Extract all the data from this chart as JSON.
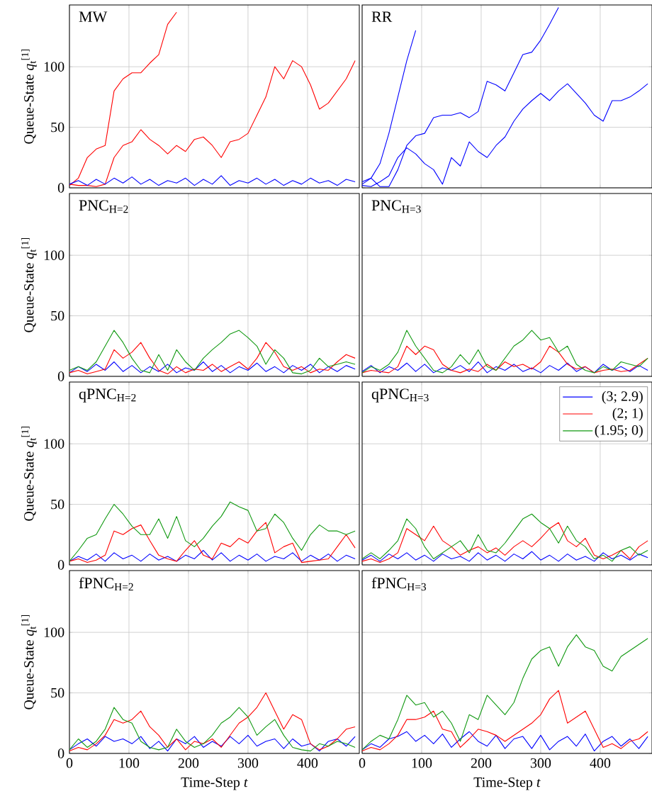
{
  "chart_data": [
    {
      "type": "line",
      "title": "MW",
      "ylabel": "Queue-State *q*$_{t}$$^{[1]}$",
      "xlim": [
        0,
        487
      ],
      "ylim": [
        0,
        151
      ],
      "xticks": [
        0,
        100,
        200,
        300,
        400
      ],
      "yticks": [
        0,
        50,
        100
      ],
      "grid": true,
      "tick_labels": "y",
      "x": [
        0,
        15,
        30,
        45,
        60,
        75,
        90,
        105,
        120,
        135,
        150,
        165,
        180,
        195,
        210,
        225,
        240,
        255,
        270,
        285,
        300,
        315,
        330,
        345,
        360,
        375,
        390,
        405,
        420,
        435,
        450,
        465,
        480
      ],
      "series": [
        {
          "color": "#ff0000",
          "values": [
            2,
            8,
            25,
            32,
            35,
            80,
            90,
            95,
            95,
            103,
            110,
            135,
            145,
            null,
            null,
            null,
            null,
            null,
            null,
            null,
            null,
            null,
            null,
            null,
            null,
            null,
            null,
            null,
            null,
            null,
            null,
            null,
            null
          ]
        },
        {
          "color": "#ff0000",
          "values": [
            3,
            2,
            2,
            1,
            3,
            25,
            35,
            38,
            48,
            40,
            35,
            28,
            35,
            30,
            40,
            42,
            35,
            25,
            38,
            40,
            45,
            60,
            75,
            100,
            90,
            105,
            100,
            85,
            65,
            70,
            80,
            90,
            105
          ]
        },
        {
          "color": "#0000ff",
          "values": [
            3,
            6,
            2,
            7,
            3,
            8,
            4,
            9,
            3,
            7,
            2,
            6,
            4,
            8,
            2,
            7,
            3,
            10,
            2,
            6,
            4,
            8,
            3,
            7,
            2,
            6,
            3,
            8,
            4,
            6,
            2,
            7,
            5
          ]
        }
      ]
    },
    {
      "type": "line",
      "title": "RR",
      "xlim": [
        0,
        487
      ],
      "ylim": [
        0,
        151
      ],
      "xticks": [
        0,
        100,
        200,
        300,
        400
      ],
      "yticks": [
        0,
        50,
        100
      ],
      "grid": true,
      "tick_labels": false,
      "x": [
        0,
        15,
        30,
        45,
        60,
        75,
        90,
        105,
        120,
        135,
        150,
        165,
        180,
        195,
        210,
        225,
        240,
        255,
        270,
        285,
        300,
        315,
        330,
        345,
        360,
        375,
        390,
        405,
        420,
        435,
        450,
        465,
        480
      ],
      "series": [
        {
          "color": "#0000ff",
          "values": [
            5,
            8,
            20,
            45,
            75,
            105,
            130,
            null,
            null,
            null,
            null,
            null,
            null,
            null,
            null,
            null,
            null,
            null,
            null,
            null,
            null,
            null,
            null,
            null,
            null,
            null,
            null,
            null,
            null,
            null,
            null,
            null,
            null
          ]
        },
        {
          "color": "#0000ff",
          "values": [
            3,
            8,
            1,
            1,
            15,
            35,
            43,
            45,
            58,
            60,
            60,
            62,
            58,
            63,
            88,
            85,
            80,
            95,
            110,
            112,
            122,
            135,
            149,
            null,
            null,
            null,
            null,
            null,
            null,
            null,
            null,
            null,
            null
          ]
        },
        {
          "color": "#0000ff",
          "values": [
            2,
            1,
            5,
            10,
            25,
            33,
            28,
            20,
            15,
            3,
            25,
            18,
            38,
            30,
            25,
            35,
            42,
            55,
            65,
            72,
            78,
            72,
            80,
            86,
            78,
            70,
            60,
            55,
            72,
            72,
            75,
            80,
            86
          ]
        }
      ]
    },
    {
      "type": "line",
      "title": "PNC$_{H=2}$",
      "ylabel": "Queue-State *q*$_{t}$$^{[1]}$",
      "xlim": [
        0,
        487
      ],
      "ylim": [
        0,
        151
      ],
      "xticks": [
        0,
        100,
        200,
        300,
        400
      ],
      "yticks": [
        0,
        50,
        100
      ],
      "grid": true,
      "tick_labels": "y",
      "x": [
        0,
        15,
        30,
        45,
        60,
        75,
        90,
        105,
        120,
        135,
        150,
        165,
        180,
        195,
        210,
        225,
        240,
        255,
        270,
        285,
        300,
        315,
        330,
        345,
        360,
        375,
        390,
        405,
        420,
        435,
        450,
        465,
        480
      ],
      "series": [
        {
          "color": "#0000ff",
          "values": [
            3,
            8,
            4,
            10,
            5,
            12,
            4,
            9,
            3,
            8,
            4,
            10,
            3,
            7,
            5,
            12,
            4,
            9,
            3,
            8,
            5,
            11,
            4,
            8,
            3,
            9,
            5,
            10,
            3,
            8,
            4,
            9,
            6
          ]
        },
        {
          "color": "#ff0000",
          "values": [
            3,
            5,
            2,
            4,
            6,
            22,
            15,
            20,
            28,
            15,
            5,
            2,
            8,
            3,
            6,
            5,
            10,
            4,
            8,
            12,
            6,
            15,
            28,
            20,
            8,
            5,
            8,
            3,
            6,
            5,
            12,
            18,
            15
          ]
        },
        {
          "color": "#119911",
          "values": [
            5,
            8,
            5,
            12,
            25,
            38,
            28,
            15,
            5,
            3,
            18,
            5,
            22,
            12,
            5,
            15,
            22,
            28,
            35,
            38,
            32,
            25,
            10,
            22,
            15,
            3,
            2,
            5,
            15,
            8,
            10,
            12,
            10
          ]
        }
      ]
    },
    {
      "type": "line",
      "title": "PNC$_{H=3}$",
      "xlim": [
        0,
        487
      ],
      "ylim": [
        0,
        151
      ],
      "xticks": [
        0,
        100,
        200,
        300,
        400
      ],
      "yticks": [
        0,
        50,
        100
      ],
      "grid": true,
      "tick_labels": false,
      "x": [
        0,
        15,
        30,
        45,
        60,
        75,
        90,
        105,
        120,
        135,
        150,
        165,
        180,
        195,
        210,
        225,
        240,
        255,
        270,
        285,
        300,
        315,
        330,
        345,
        360,
        375,
        390,
        405,
        420,
        435,
        450,
        465,
        480
      ],
      "series": [
        {
          "color": "#0000ff",
          "values": [
            4,
            9,
            3,
            8,
            5,
            11,
            4,
            10,
            3,
            7,
            5,
            9,
            4,
            12,
            3,
            8,
            5,
            10,
            4,
            7,
            3,
            9,
            5,
            11,
            4,
            8,
            3,
            10,
            5,
            8,
            4,
            9,
            5
          ]
        },
        {
          "color": "#ff0000",
          "values": [
            3,
            5,
            4,
            3,
            8,
            25,
            18,
            25,
            22,
            10,
            5,
            3,
            6,
            4,
            10,
            5,
            12,
            8,
            10,
            6,
            12,
            25,
            20,
            10,
            6,
            8,
            3,
            5,
            6,
            4,
            5,
            10,
            15
          ]
        },
        {
          "color": "#119911",
          "values": [
            3,
            8,
            5,
            10,
            20,
            38,
            25,
            15,
            5,
            3,
            8,
            18,
            10,
            22,
            8,
            5,
            15,
            25,
            30,
            38,
            30,
            32,
            20,
            25,
            10,
            5,
            3,
            8,
            5,
            12,
            10,
            8,
            15
          ]
        }
      ]
    },
    {
      "type": "line",
      "title": "qPNC$_{H=2}$",
      "ylabel": "Queue-State *q*$_{t}$$^{[1]}$",
      "xlim": [
        0,
        487
      ],
      "ylim": [
        0,
        151
      ],
      "xticks": [
        0,
        100,
        200,
        300,
        400
      ],
      "yticks": [
        0,
        50,
        100
      ],
      "grid": true,
      "tick_labels": "y",
      "x": [
        0,
        15,
        30,
        45,
        60,
        75,
        90,
        105,
        120,
        135,
        150,
        165,
        180,
        195,
        210,
        225,
        240,
        255,
        270,
        285,
        300,
        315,
        330,
        345,
        360,
        375,
        390,
        405,
        420,
        435,
        450,
        465,
        480
      ],
      "series": [
        {
          "color": "#0000ff",
          "values": [
            3,
            7,
            4,
            9,
            3,
            10,
            5,
            8,
            3,
            9,
            4,
            7,
            3,
            8,
            5,
            12,
            4,
            10,
            3,
            8,
            4,
            9,
            3,
            7,
            5,
            10,
            3,
            8,
            4,
            9,
            3,
            8,
            5
          ]
        },
        {
          "color": "#ff0000",
          "values": [
            3,
            5,
            2,
            4,
            8,
            28,
            25,
            30,
            33,
            20,
            8,
            5,
            3,
            12,
            20,
            8,
            5,
            18,
            15,
            22,
            18,
            28,
            35,
            10,
            15,
            18,
            2,
            3,
            4,
            5,
            15,
            25,
            14
          ]
        },
        {
          "color": "#119911",
          "values": [
            3,
            12,
            22,
            25,
            38,
            50,
            42,
            32,
            25,
            25,
            38,
            22,
            40,
            20,
            15,
            22,
            32,
            40,
            52,
            48,
            45,
            28,
            30,
            42,
            35,
            22,
            12,
            25,
            33,
            28,
            28,
            25,
            28
          ]
        }
      ]
    },
    {
      "type": "line",
      "title": "qPNC$_{H=3}$",
      "xlim": [
        0,
        487
      ],
      "ylim": [
        0,
        151
      ],
      "xticks": [
        0,
        100,
        200,
        300,
        400
      ],
      "yticks": [
        0,
        50,
        100
      ],
      "grid": true,
      "tick_labels": false,
      "legend": "top right",
      "x": [
        0,
        15,
        30,
        45,
        60,
        75,
        90,
        105,
        120,
        135,
        150,
        165,
        180,
        195,
        210,
        225,
        240,
        255,
        270,
        285,
        300,
        315,
        330,
        345,
        360,
        375,
        390,
        405,
        420,
        435,
        450,
        465,
        480
      ],
      "series": [
        {
          "name": "(3; 2.9)",
          "color": "#0000ff",
          "values": [
            4,
            8,
            3,
            9,
            5,
            10,
            4,
            8,
            3,
            9,
            5,
            7,
            3,
            10,
            4,
            8,
            3,
            9,
            5,
            11,
            4,
            8,
            3,
            9,
            4,
            7,
            3,
            10,
            5,
            8,
            4,
            9,
            6
          ]
        },
        {
          "name": "(2; 1)",
          "color": "#ff0000",
          "values": [
            3,
            5,
            2,
            5,
            10,
            30,
            25,
            20,
            32,
            20,
            15,
            8,
            12,
            15,
            10,
            14,
            8,
            15,
            20,
            15,
            22,
            30,
            35,
            20,
            15,
            22,
            8,
            5,
            8,
            12,
            5,
            15,
            20
          ]
        },
        {
          "name": "(1.95; 0)",
          "color": "#119911",
          "values": [
            5,
            10,
            5,
            12,
            20,
            38,
            30,
            15,
            5,
            10,
            15,
            20,
            10,
            25,
            12,
            10,
            18,
            28,
            38,
            42,
            35,
            30,
            18,
            32,
            20,
            15,
            5,
            8,
            3,
            12,
            15,
            8,
            12
          ]
        }
      ]
    },
    {
      "type": "line",
      "title": "fPNC$_{H=2}$",
      "ylabel": "Queue-State *q*$_{t}$$^{[1]}$",
      "xlabel": "Time-Step *t*",
      "xlim": [
        0,
        487
      ],
      "ylim": [
        0,
        151
      ],
      "xticks": [
        0,
        100,
        200,
        300,
        400
      ],
      "yticks": [
        0,
        50,
        100
      ],
      "grid": true,
      "x": [
        0,
        15,
        30,
        45,
        60,
        75,
        90,
        105,
        120,
        135,
        150,
        165,
        180,
        195,
        210,
        225,
        240,
        255,
        270,
        285,
        300,
        315,
        330,
        345,
        360,
        375,
        390,
        405,
        420,
        435,
        450,
        465,
        480
      ],
      "series": [
        {
          "color": "#0000ff",
          "values": [
            3,
            8,
            12,
            6,
            14,
            10,
            12,
            8,
            14,
            4,
            10,
            2,
            12,
            8,
            14,
            5,
            10,
            6,
            14,
            8,
            15,
            6,
            10,
            12,
            4,
            12,
            6,
            8,
            2,
            10,
            12,
            6,
            14
          ]
        },
        {
          "color": "#ff0000",
          "values": [
            2,
            5,
            3,
            8,
            15,
            28,
            25,
            28,
            35,
            22,
            15,
            5,
            12,
            3,
            10,
            8,
            12,
            5,
            15,
            25,
            30,
            38,
            50,
            35,
            20,
            32,
            28,
            8,
            3,
            6,
            12,
            20,
            22
          ]
        },
        {
          "color": "#119911",
          "values": [
            3,
            12,
            5,
            10,
            20,
            38,
            28,
            25,
            10,
            5,
            3,
            5,
            20,
            10,
            5,
            8,
            15,
            25,
            30,
            38,
            30,
            15,
            22,
            28,
            15,
            5,
            3,
            2,
            8,
            6,
            10,
            8,
            5
          ]
        }
      ]
    },
    {
      "type": "line",
      "title": "fPNC$_{H=3}$",
      "xlabel": "Time-Step *t*",
      "xlim": [
        0,
        487
      ],
      "ylim": [
        0,
        151
      ],
      "xticks": [
        0,
        100,
        200,
        300,
        400
      ],
      "yticks": [
        0,
        50,
        100
      ],
      "grid": true,
      "tick_labels": "x",
      "x": [
        0,
        15,
        30,
        45,
        60,
        75,
        90,
        105,
        120,
        135,
        150,
        165,
        180,
        195,
        210,
        225,
        240,
        255,
        270,
        285,
        300,
        315,
        330,
        345,
        360,
        375,
        390,
        405,
        420,
        435,
        450,
        465,
        480
      ],
      "series": [
        {
          "color": "#0000ff",
          "values": [
            3,
            8,
            5,
            12,
            14,
            18,
            10,
            15,
            8,
            16,
            5,
            12,
            18,
            10,
            6,
            15,
            4,
            12,
            14,
            4,
            15,
            3,
            10,
            14,
            6,
            16,
            2,
            10,
            14,
            6,
            12,
            4,
            14
          ]
        },
        {
          "color": "#ff0000",
          "values": [
            2,
            5,
            3,
            8,
            15,
            28,
            28,
            30,
            35,
            20,
            18,
            5,
            12,
            20,
            18,
            15,
            10,
            15,
            20,
            25,
            32,
            45,
            52,
            25,
            30,
            35,
            20,
            5,
            8,
            4,
            10,
            12,
            18
          ]
        },
        {
          "color": "#119911",
          "values": [
            3,
            10,
            15,
            12,
            28,
            48,
            40,
            42,
            30,
            35,
            25,
            10,
            32,
            28,
            48,
            40,
            32,
            42,
            62,
            78,
            85,
            88,
            72,
            88,
            98,
            88,
            85,
            72,
            68,
            80,
            85,
            90,
            95
          ]
        }
      ]
    }
  ]
}
